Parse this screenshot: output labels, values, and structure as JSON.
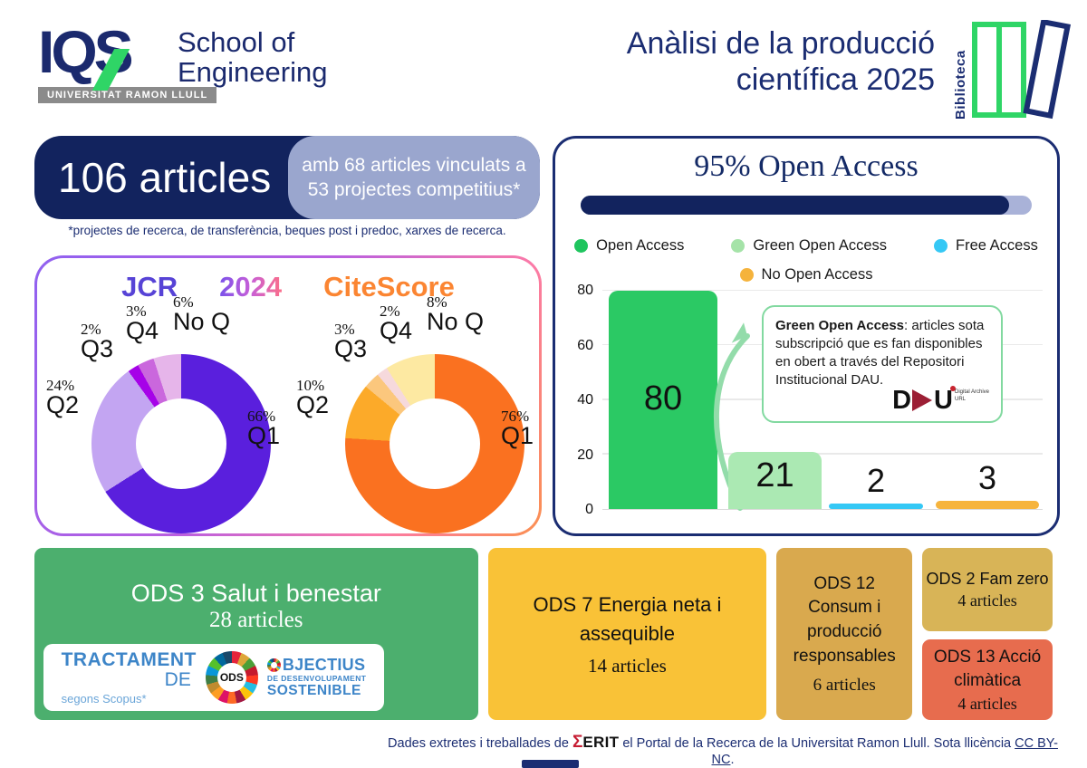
{
  "header": {
    "iqs": "IQS",
    "school_line1": "School of",
    "school_line2": "Engineering",
    "university": "UNIVERSITAT RAMON LLULL",
    "title_line1": "Anàlisi de la producció",
    "title_line2": "científica 2025",
    "biblioteca": "Biblioteca"
  },
  "articles_banner": {
    "main": "106 articles",
    "sub_line1": "amb 68 articles vinculats a",
    "sub_line2": "53 projectes competitius*",
    "footnote": "*projectes de recerca, de transferència, beques post i predoc, xarxes de recerca."
  },
  "quartiles_panel": {
    "title_jcr": "JCR",
    "title_year": "2024",
    "title_citescore": "CiteScore"
  },
  "open_access_panel": {
    "title": "95% Open Access",
    "progress_percent": 95,
    "progress_fill_color": "#12235e",
    "progress_track_color": "#a9b2d8",
    "legend": [
      {
        "label": "Open Access",
        "color": "#1fc55e"
      },
      {
        "label": "Green Open Access",
        "color": "#a5e3a8"
      },
      {
        "label": "Free Access",
        "color": "#35c8f5"
      },
      {
        "label": "No Open Access",
        "color": "#f5b33c"
      }
    ],
    "note_bold": "Green Open Access",
    "note_text": ": articles sota subscripció que es fan disponibles en obert a través del Repositori Institucional DAU.",
    "dau_logo": {
      "d": "D",
      "u": "U",
      "caption_line1": "Digital Archive",
      "caption_line2": "URL"
    }
  },
  "chart_data": [
    {
      "type": "pie",
      "name": "jcr_quartiles_donut",
      "title": "JCR 2024",
      "labels": [
        "Q1",
        "Q2",
        "Q3",
        "Q4",
        "No Q"
      ],
      "values": [
        66,
        24,
        2,
        3,
        6
      ],
      "unit": "%",
      "colors": [
        "#5a1fdd",
        "#c3a5f2",
        "#a602e8",
        "#ca67dd",
        "#e6b5ea"
      ],
      "donut": true
    },
    {
      "type": "pie",
      "name": "citescore_quartiles_donut",
      "title": "CiteScore 2024",
      "labels": [
        "Q1",
        "Q2",
        "Q3",
        "Q4",
        "No Q"
      ],
      "values": [
        76,
        10,
        3,
        2,
        8
      ],
      "unit": "%",
      "colors": [
        "#fa7120",
        "#fcaa29",
        "#fbc77d",
        "#f6d9dc",
        "#fde9a2"
      ],
      "donut": true
    },
    {
      "type": "bar",
      "name": "open_access_articles",
      "title": "95% Open Access",
      "categories": [
        "Open Access",
        "Green Open Access",
        "Free Access",
        "No Open Access"
      ],
      "values": [
        80,
        21,
        2,
        3
      ],
      "colors": [
        "#2bc964",
        "#abe9b3",
        "#35c8f5",
        "#f6b43d"
      ],
      "ylim": [
        0,
        80
      ],
      "yticks": [
        0,
        20,
        40,
        60,
        80
      ],
      "grid": true,
      "legend_position": "top"
    }
  ],
  "ods": [
    {
      "title": "ODS 3 Salut i benestar",
      "count": "28 articles",
      "color": "#4caf6e"
    },
    {
      "title": "ODS 7 Energia neta i assequible",
      "count": "14 articles",
      "color": "#f9c237"
    },
    {
      "title": "ODS 12 Consum i producció responsables",
      "count": "6 articles",
      "color": "#d9a94e"
    },
    {
      "title": "ODS 2 Fam zero",
      "count": "4 articles",
      "color": "#d8b457"
    },
    {
      "title": "ODS 13 Acció climàtica",
      "count": "4 articles",
      "color": "#e76c4e"
    }
  ],
  "scopus_badge": {
    "tractament": "TRACTAMENT",
    "de": "DE",
    "segons": "segons Scopus*",
    "wheel_label": "ODS",
    "objectius": "BJECTIUS",
    "line2": "DE DESENVOLUPAMENT",
    "line3": "SOSTENIBLE"
  },
  "footer": {
    "text_pre": "Dades extretes i treballades de",
    "sigma": "Σ",
    "erit": "ERIT",
    "text_mid": "el Portal de la Recerca de la Universitat Ramon Llull. Sota llicència",
    "link": "CC BY-NC",
    "period": "."
  },
  "sdg_wheel_colors": [
    "#e5243b",
    "#dda63a",
    "#4c9f38",
    "#c5192d",
    "#ff3a21",
    "#26bde2",
    "#fcc30b",
    "#a21942",
    "#fd6925",
    "#dd1367",
    "#fd9d24",
    "#bf8b2e",
    "#3f7e44",
    "#0a97d9",
    "#56c02b",
    "#00689d",
    "#19486a"
  ]
}
